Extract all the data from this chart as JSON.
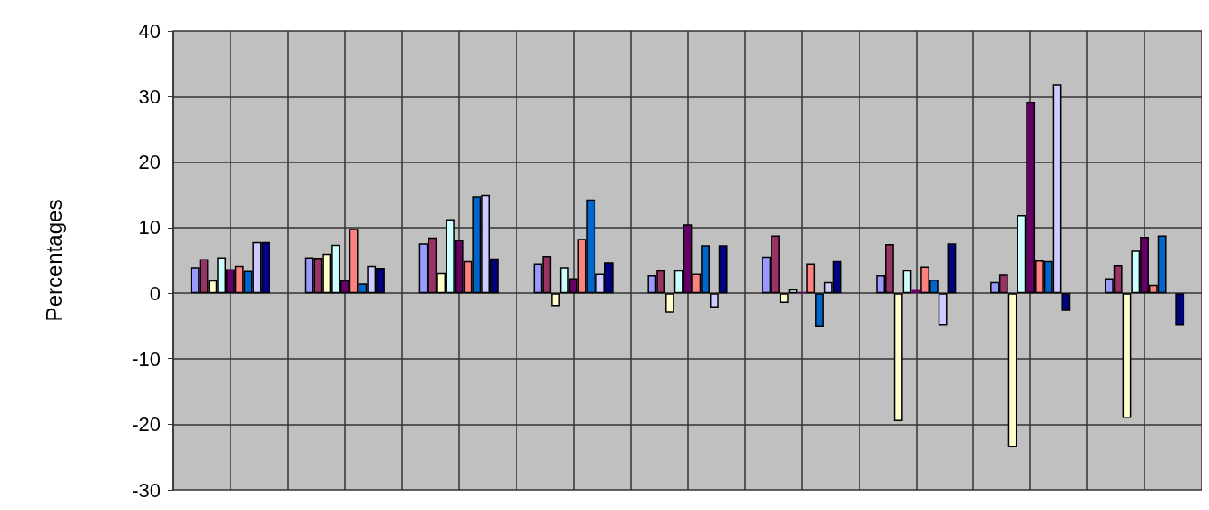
{
  "chart_data": {
    "type": "bar",
    "ylabel": "Percentages",
    "categories": [
      null,
      null,
      null,
      null,
      null,
      null,
      null,
      null,
      null
    ],
    "series": [
      {
        "color": "#9999ff",
        "values": [
          4.0,
          5.5,
          7.6,
          4.5,
          2.8,
          5.6,
          2.8,
          1.7,
          2.3
        ]
      },
      {
        "color": "#993366",
        "values": [
          5.2,
          5.4,
          8.5,
          5.7,
          3.5,
          8.8,
          7.5,
          2.9,
          4.3
        ]
      },
      {
        "color": "#ffffcc",
        "values": [
          2.0,
          6.0,
          3.1,
          -2.0,
          -3.0,
          -1.5,
          -19.5,
          -23.5,
          -19.0
        ]
      },
      {
        "color": "#ccffff",
        "values": [
          5.5,
          7.4,
          11.3,
          4.0,
          3.5,
          0.6,
          3.5,
          11.9,
          6.5
        ]
      },
      {
        "color": "#660066",
        "values": [
          3.7,
          2.0,
          8.1,
          2.3,
          10.5,
          0.2,
          0.5,
          29.2,
          8.6
        ]
      },
      {
        "color": "#ff8080",
        "values": [
          4.2,
          9.8,
          4.9,
          8.3,
          3.0,
          4.5,
          4.1,
          5.0,
          1.3
        ]
      },
      {
        "color": "#0066cc",
        "values": [
          3.4,
          1.5,
          14.8,
          14.3,
          7.3,
          -5.1,
          2.1,
          4.9,
          8.8
        ]
      },
      {
        "color": "#ccccff",
        "values": [
          7.8,
          4.2,
          15.0,
          3.0,
          -2.2,
          1.7,
          -4.9,
          31.8,
          null
        ]
      },
      {
        "color": "#000080",
        "values": [
          7.8,
          3.9,
          5.3,
          4.7,
          7.3,
          4.9,
          7.6,
          -2.7,
          -4.9
        ]
      }
    ],
    "ylim": [
      -30,
      40
    ],
    "yticks": [
      -30,
      -20,
      -10,
      0,
      10,
      20,
      30,
      40
    ],
    "grid": true
  }
}
